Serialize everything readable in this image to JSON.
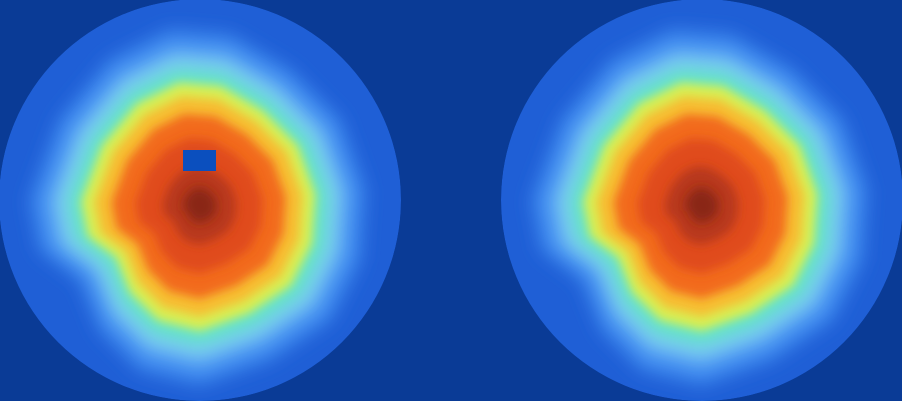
{
  "background_color": "#0a3b96",
  "colormap": [
    "#0a3b96",
    "#1f5fd6",
    "#3f8bf0",
    "#79c6f5",
    "#62e6c4",
    "#d8ef52",
    "#f7bd33",
    "#f26a1f",
    "#e04b1e",
    "#b7371a",
    "#8a2612"
  ],
  "panels": [
    {
      "name": "panel-left",
      "description_marker": "masked-rectangle",
      "has_mask_patch": true,
      "mask_color": "#0b4fbe"
    },
    {
      "name": "panel-right",
      "has_mask_patch": false
    }
  ]
}
